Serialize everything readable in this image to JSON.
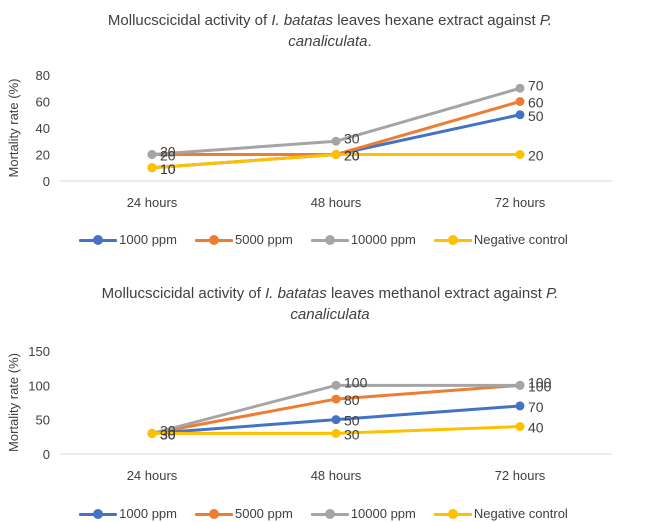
{
  "chart_data": [
    {
      "type": "line",
      "title": "Mollucscicidal activity of I. batatas leaves hexane extract against P. canaliculata.",
      "title_parts": {
        "line1_a": "Mollucscicidal activity of ",
        "line1_b": "I. batatas",
        "line1_c": " leaves hexane extract against ",
        "line1_d": "P.",
        "line2_a": "canaliculata",
        "line2_b": "."
      },
      "xlabel": "",
      "ylabel": "Mortality rate (%)",
      "categories": [
        "24 hours",
        "48 hours",
        "72 hours"
      ],
      "ylim": [
        0,
        80
      ],
      "yticks": [
        0,
        20,
        40,
        60,
        80
      ],
      "grid": false,
      "legend_position": "bottom",
      "series": [
        {
          "name": "1000 ppm",
          "color": "#4472C4",
          "values": [
            10,
            20,
            50
          ]
        },
        {
          "name": "5000 ppm",
          "color": "#ED7D31",
          "values": [
            20,
            20,
            60
          ]
        },
        {
          "name": "10000 ppm",
          "color": "#A5A5A5",
          "values": [
            20,
            30,
            70
          ]
        },
        {
          "name": "Negative control",
          "color": "#FFC000",
          "values": [
            10,
            20,
            20
          ]
        }
      ]
    },
    {
      "type": "line",
      "title": "Mollucscicidal activity of I. batatas leaves methanol extract against P. canaliculata",
      "title_parts": {
        "line1_a": "Mollucscicidal activity of ",
        "line1_b": "I. batatas",
        "line1_c": " leaves methanol extract against ",
        "line1_d": "P.",
        "line2_a": "canaliculata",
        "line2_b": ""
      },
      "xlabel": "",
      "ylabel": "Mortality rate (%)",
      "categories": [
        "24 hours",
        "48 hours",
        "72 hours"
      ],
      "ylim": [
        0,
        150
      ],
      "yticks": [
        0,
        50,
        100,
        150
      ],
      "grid": false,
      "legend_position": "bottom",
      "series": [
        {
          "name": "1000 ppm",
          "color": "#4472C4",
          "values": [
            30,
            50,
            70
          ]
        },
        {
          "name": "5000 ppm",
          "color": "#ED7D31",
          "values": [
            30,
            80,
            100
          ]
        },
        {
          "name": "10000 ppm",
          "color": "#A5A5A5",
          "values": [
            30,
            100,
            100
          ]
        },
        {
          "name": "Negative control",
          "color": "#FFC000",
          "values": [
            30,
            30,
            40
          ]
        }
      ]
    }
  ]
}
